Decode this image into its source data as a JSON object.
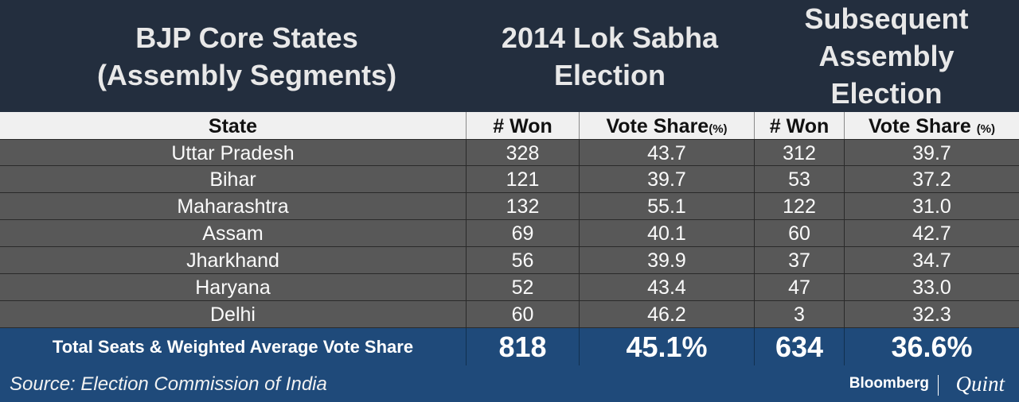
{
  "header": {
    "group_title": "BJP Core States\n(Assembly Segments)",
    "lok_sabha_title": "2014 Lok Sabha\nElection",
    "assembly_title": "Subsequent\nAssembly\nElection"
  },
  "columns": {
    "state": "State",
    "won": "# Won",
    "vote_share": "Vote Share",
    "pct": "(%)"
  },
  "chart_data": {
    "type": "table",
    "columns": [
      "State",
      "2014 Lok Sabha # Won",
      "2014 Lok Sabha Vote Share (%)",
      "Subsequent Assembly # Won",
      "Subsequent Assembly Vote Share (%)"
    ],
    "rows": [
      {
        "state": "Uttar Pradesh",
        "ls_won": "328",
        "ls_vote": "43.7",
        "ae_won": "312",
        "ae_vote": "39.7"
      },
      {
        "state": "Bihar",
        "ls_won": "121",
        "ls_vote": "39.7",
        "ae_won": "53",
        "ae_vote": "37.2"
      },
      {
        "state": "Maharashtra",
        "ls_won": "132",
        "ls_vote": "55.1",
        "ae_won": "122",
        "ae_vote": "31.0"
      },
      {
        "state": "Assam",
        "ls_won": "69",
        "ls_vote": "40.1",
        "ae_won": "60",
        "ae_vote": "42.7"
      },
      {
        "state": "Jharkhand",
        "ls_won": "56",
        "ls_vote": "39.9",
        "ae_won": "37",
        "ae_vote": "34.7"
      },
      {
        "state": "Haryana",
        "ls_won": "52",
        "ls_vote": "43.4",
        "ae_won": "47",
        "ae_vote": "33.0"
      },
      {
        "state": "Delhi",
        "ls_won": "60",
        "ls_vote": "46.2",
        "ae_won": "3",
        "ae_vote": "32.3"
      }
    ],
    "total": {
      "label": "Total Seats & Weighted Average Vote Share",
      "ls_won": "818",
      "ls_vote": "45.1%",
      "ae_won": "634",
      "ae_vote": "36.6%"
    }
  },
  "footer": {
    "source": "Source: Election Commission of India",
    "brand_1": "Bloomberg",
    "brand_2": "Quint"
  },
  "colors": {
    "header_bg": "#232e3e",
    "column_header_bg": "#f0f0f0",
    "row_bg": "#585858",
    "total_bg": "#1f4a7a"
  }
}
